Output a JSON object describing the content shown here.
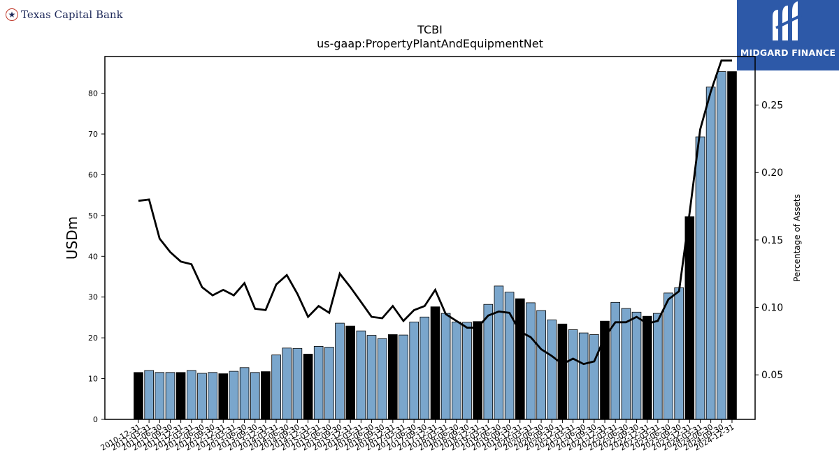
{
  "logos": {
    "left": {
      "text": "Texas Capital Bank",
      "icon": "star-seal-icon",
      "accent": "#c0392b",
      "color": "#1f2a5a"
    },
    "right": {
      "text": "MIDGARD FINANCE",
      "icon": "midgard-m-icon",
      "background": "#2d59a8"
    }
  },
  "chart_data": {
    "type": "bar",
    "title": "TCBI",
    "subtitle": "us-gaap:PropertyPlantAndEquipmentNet",
    "ylabel": "USDm",
    "y2label": "Percentage of Assets",
    "ylim": [
      0,
      89
    ],
    "y2lim": [
      0.017,
      0.286
    ],
    "yticks": [
      0,
      10,
      20,
      30,
      40,
      50,
      60,
      70,
      80
    ],
    "y2ticks": [
      "0.05",
      "0.10",
      "0.15",
      "0.20",
      "0.25"
    ],
    "colors": {
      "bar": "#7aa6cc",
      "bar_year_end": "#000000",
      "line": "#000000"
    },
    "categories": [
      "2010-12-31",
      "2011-03-31",
      "2011-06-30",
      "2011-09-30",
      "2011-12-31",
      "2012-03-31",
      "2012-06-30",
      "2012-09-30",
      "2012-12-31",
      "2013-03-31",
      "2013-06-30",
      "2013-09-30",
      "2013-12-31",
      "2014-03-31",
      "2014-06-30",
      "2014-09-30",
      "2014-12-31",
      "2015-03-31",
      "2015-06-30",
      "2015-09-30",
      "2015-12-31",
      "2016-03-31",
      "2016-06-30",
      "2016-09-30",
      "2016-12-31",
      "2017-03-31",
      "2017-06-30",
      "2017-09-30",
      "2017-12-31",
      "2018-03-31",
      "2018-06-30",
      "2018-09-30",
      "2018-12-31",
      "2019-03-31",
      "2019-06-30",
      "2019-09-30",
      "2019-12-31",
      "2020-03-31",
      "2020-06-30",
      "2020-09-30",
      "2020-12-31",
      "2021-03-31",
      "2021-06-30",
      "2021-09-30",
      "2021-12-31",
      "2022-03-31",
      "2022-06-30",
      "2022-09-30",
      "2022-12-31",
      "2023-03-31",
      "2023-06-30",
      "2023-09-30",
      "2023-12-31",
      "2024-03-31",
      "2024-06-30",
      "2024-09-30",
      "2024-12-31"
    ],
    "series": [
      {
        "kind": "bar",
        "values": [
          11.5,
          12.0,
          11.5,
          11.5,
          11.5,
          12.0,
          11.3,
          11.5,
          11.2,
          11.8,
          12.7,
          11.5,
          11.7,
          15.8,
          17.5,
          17.4,
          16.0,
          17.9,
          17.7,
          23.6,
          22.9,
          21.7,
          20.6,
          19.8,
          20.8,
          20.7,
          23.9,
          25.1,
          27.6,
          26.0,
          23.9,
          23.8,
          24.0,
          28.2,
          32.7,
          31.2,
          29.6,
          28.6,
          26.7,
          24.4,
          23.4,
          22.0,
          21.2,
          20.8,
          24.1,
          28.7,
          27.2,
          26.3,
          25.3,
          26.0,
          31.0,
          32.3,
          49.7,
          69.3,
          81.5,
          85.3,
          85.3
        ],
        "year_end": [
          true,
          false,
          false,
          false,
          true,
          false,
          false,
          false,
          true,
          false,
          false,
          false,
          true,
          false,
          false,
          false,
          true,
          false,
          false,
          false,
          true,
          false,
          false,
          false,
          true,
          false,
          false,
          false,
          true,
          false,
          false,
          false,
          true,
          false,
          false,
          false,
          true,
          false,
          false,
          false,
          true,
          false,
          false,
          false,
          true,
          false,
          false,
          false,
          true,
          false,
          false,
          false,
          true,
          false,
          false,
          false,
          true
        ]
      },
      {
        "kind": "line",
        "axis": "right",
        "values": [
          0.179,
          0.18,
          0.151,
          0.141,
          0.134,
          0.132,
          0.115,
          0.109,
          0.113,
          0.109,
          0.118,
          0.099,
          0.098,
          0.117,
          0.124,
          0.11,
          0.093,
          0.101,
          0.096,
          0.125,
          0.115,
          0.104,
          0.093,
          0.092,
          0.101,
          0.09,
          0.098,
          0.101,
          0.113,
          0.095,
          0.09,
          0.085,
          0.085,
          0.094,
          0.097,
          0.096,
          0.082,
          0.078,
          0.069,
          0.064,
          0.058,
          0.062,
          0.058,
          0.06,
          0.078,
          0.089,
          0.089,
          0.093,
          0.088,
          0.09,
          0.106,
          0.112,
          0.17,
          0.232,
          0.26,
          0.283,
          0.283
        ]
      }
    ]
  }
}
